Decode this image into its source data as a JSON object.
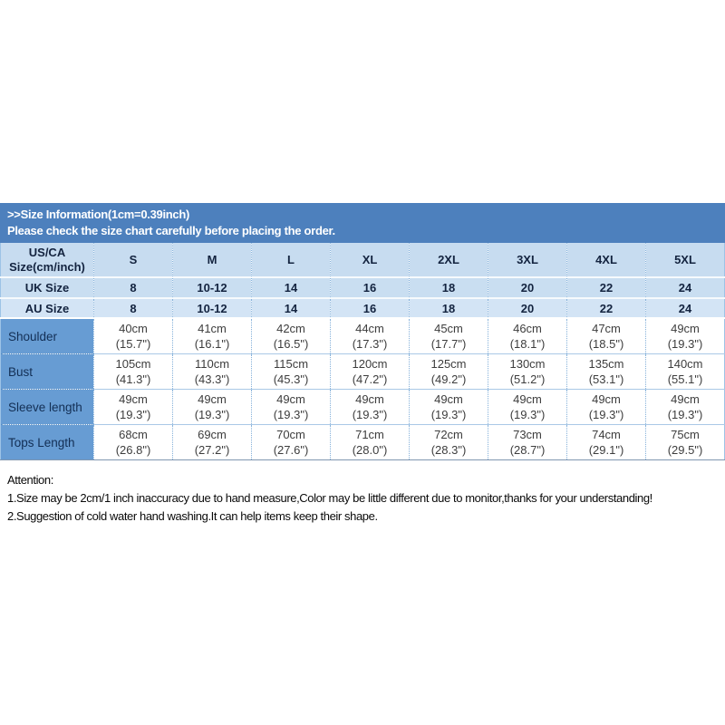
{
  "banner": {
    "title": ">>Size Information(1cm=0.39inch)",
    "subtitle": "Please check the size chart carefully before placing the order."
  },
  "table": {
    "corner_label": "US/CA\nSize(cm/inch)",
    "sizes": [
      "S",
      "M",
      "L",
      "XL",
      "2XL",
      "3XL",
      "4XL",
      "5XL"
    ],
    "uk": {
      "label": "UK Size",
      "values": [
        "8",
        "10-12",
        "14",
        "16",
        "18",
        "20",
        "22",
        "24"
      ]
    },
    "au": {
      "label": "AU Size",
      "values": [
        "8",
        "10-12",
        "14",
        "16",
        "18",
        "20",
        "22",
        "24"
      ]
    },
    "rows": [
      {
        "label": "Shoulder",
        "values": [
          "40cm\n(15.7\")",
          "41cm\n(16.1\")",
          "42cm\n(16.5\")",
          "44cm\n(17.3\")",
          "45cm\n(17.7\")",
          "46cm\n(18.1\")",
          "47cm\n(18.5\")",
          "49cm\n(19.3\")"
        ]
      },
      {
        "label": "Bust",
        "values": [
          "105cm\n(41.3\")",
          "110cm\n(43.3\")",
          "115cm\n(45.3\")",
          "120cm\n(47.2\")",
          "125cm\n(49.2\")",
          "130cm\n(51.2\")",
          "135cm\n(53.1\")",
          "140cm\n(55.1\")"
        ]
      },
      {
        "label": "Sleeve length",
        "values": [
          "49cm\n(19.3\")",
          "49cm\n(19.3\")",
          "49cm\n(19.3\")",
          "49cm\n(19.3\")",
          "49cm\n(19.3\")",
          "49cm\n(19.3\")",
          "49cm\n(19.3\")",
          "49cm\n(19.3\")"
        ]
      },
      {
        "label": "Tops Length",
        "values": [
          "68cm\n(26.8\")",
          "69cm\n(27.2\")",
          "70cm\n(27.6\")",
          "71cm\n(28.0\")",
          "72cm\n(28.3\")",
          "73cm\n(28.7\")",
          "74cm\n(29.1\")",
          "75cm\n(29.5\")"
        ]
      }
    ]
  },
  "attention": {
    "title": "Attention:",
    "line1": "1.Size may be 2cm/1 inch inaccuracy due to hand measure,Color may be little different due to monitor,thanks for your understanding!",
    "line2": "2.Suggestion of cold water hand washing.It can help items keep their shape."
  },
  "colors": {
    "banner_blue": "#4d80bd",
    "header_light_blue": "#c7dcf0",
    "au_light_blue": "#d3e4f5",
    "label_blue": "#679cd3"
  }
}
